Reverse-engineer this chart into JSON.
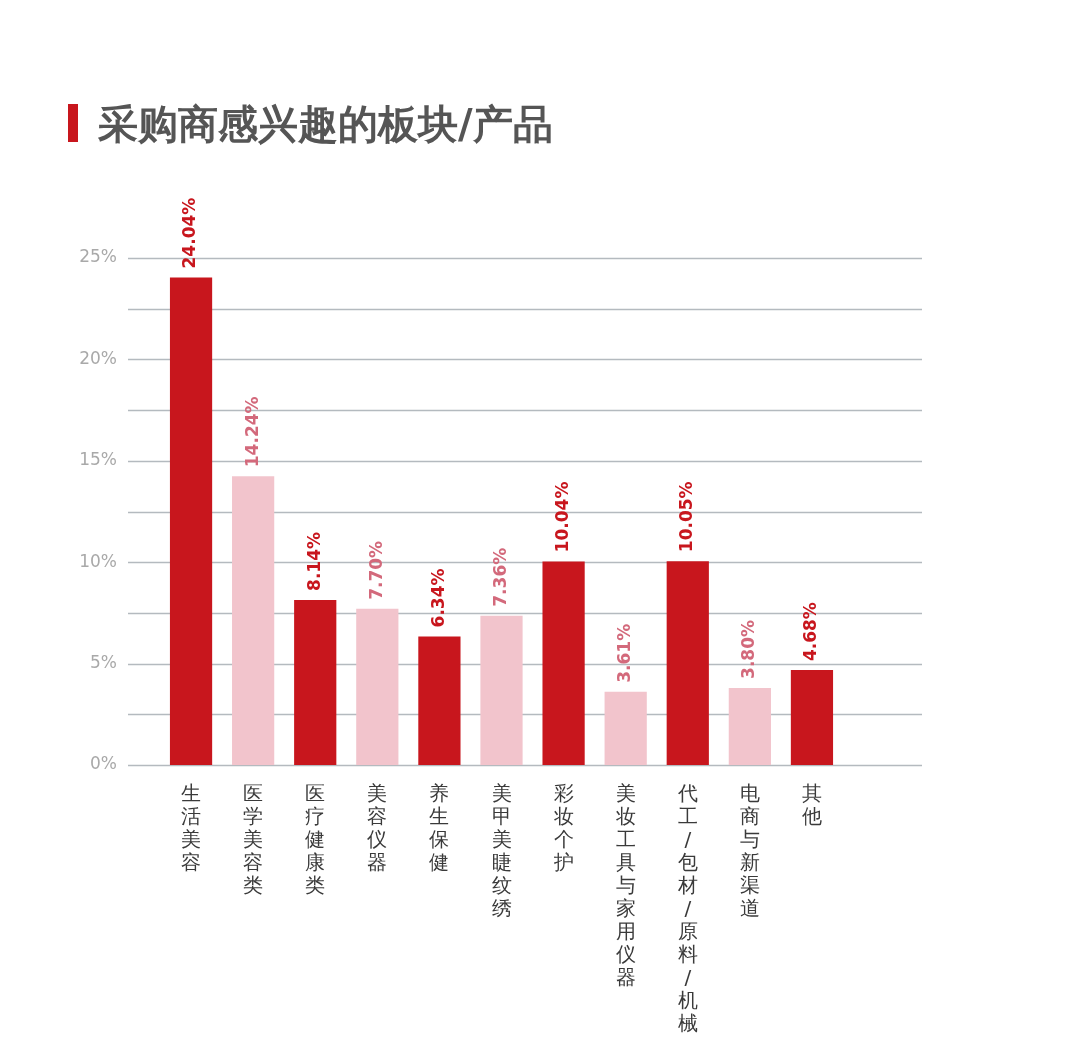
{
  "chart_data": {
    "type": "bar",
    "title": "采购商感兴趣的板块/产品",
    "categories": [
      "生活美容",
      "医学美容类",
      "医疗健康类",
      "美容仪器",
      "养生保健",
      "美甲美睫纹绣",
      "彩妆个护",
      "美妆工具与家用仪器",
      "代工/包材/原料/机械",
      "电商与新渠道",
      "其他"
    ],
    "values": [
      24.04,
      14.24,
      8.14,
      7.7,
      6.34,
      7.36,
      10.04,
      3.61,
      10.05,
      3.8,
      4.68
    ],
    "colors": [
      "#c8161d",
      "#f2c4cc",
      "#c8161d",
      "#f2c4cc",
      "#c8161d",
      "#f2c4cc",
      "#c8161d",
      "#f2c4cc",
      "#c8161d",
      "#f2c4cc",
      "#c8161d"
    ],
    "value_labels": [
      "24.04%",
      "14.24%",
      "8.14%",
      "7.70%",
      "6.34%",
      "7.36%",
      "10.04%",
      "3.61%",
      "10.05%",
      "3.80%",
      "4.68%"
    ],
    "ylim": [
      0,
      25
    ],
    "yticks": [
      {
        "value": 0,
        "label": "0%"
      },
      {
        "value": 2.5,
        "label": null
      },
      {
        "value": 5,
        "label": "5%"
      },
      {
        "value": 7.5,
        "label": null
      },
      {
        "value": 10,
        "label": "10%"
      },
      {
        "value": 12.5,
        "label": null
      },
      {
        "value": 15,
        "label": "15%"
      },
      {
        "value": 17.5,
        "label": null
      },
      {
        "value": 20,
        "label": "20%"
      },
      {
        "value": 22.5,
        "label": null
      },
      {
        "value": 25,
        "label": "25%"
      }
    ],
    "grid": "y"
  }
}
